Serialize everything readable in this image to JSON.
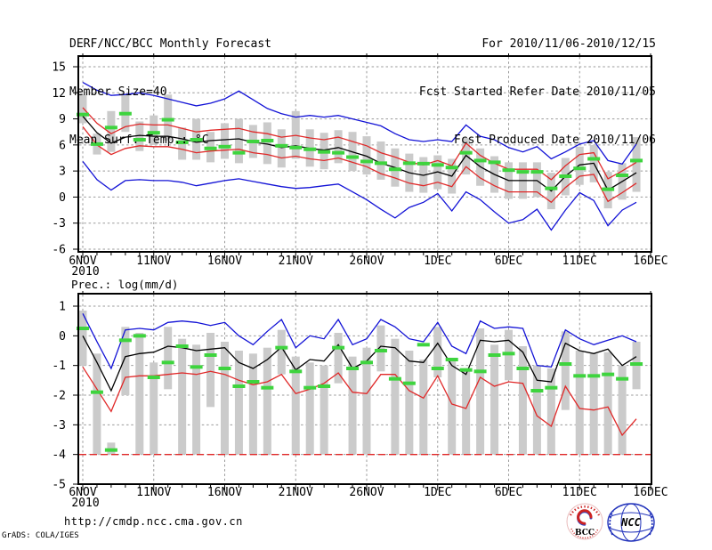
{
  "header": {
    "title": "DERF/NCC/BCC Monthly Forecast",
    "member_size": "Member Size=40",
    "chart1_label": "Mean Surf. Temp.: °C",
    "for_range": "For 2010/11/06-2010/12/15",
    "refer_date": "Fcst Started Refer Date 2010/11/05",
    "produced_date": "Fcst Produced Date 2010/11/06"
  },
  "footer": {
    "url": "http://cmdp.ncc.cma.gov.cn",
    "credit": "GrADS: COLA/IGES",
    "logos": [
      {
        "name": "bcc-logo",
        "caption": "BCC"
      },
      {
        "name": "ncc-logo",
        "caption": "NCC"
      }
    ]
  },
  "colors": {
    "blue": "#1212d6",
    "red": "#e02828",
    "black": "#000000",
    "green": "#3ed43e",
    "bar_gray": "#cbcbcb",
    "grid_gray": "#999999",
    "logo_blue": "#2233bb",
    "logo_red": "#cc2222",
    "logo_navy": "#1c2d80"
  },
  "chart_data": [
    {
      "type": "line",
      "name": "mean-surface-temperature-chart",
      "title": "Mean Surf. Temp.: °C",
      "x_tick_labels": [
        "6NOV",
        "11NOV",
        "16NOV",
        "21NOV",
        "26NOV",
        "1DEC",
        "6DEC",
        "11DEC",
        "16DEC"
      ],
      "x_year_label": "2010",
      "y_ticks": [
        15,
        12,
        9,
        6,
        3,
        0,
        -3,
        -6
      ],
      "ylim": [
        -6.3,
        16.2
      ],
      "n_days": 40,
      "grid": true,
      "series": [
        {
          "name": "ensemble-max",
          "color": "blue",
          "values": [
            13.2,
            12.3,
            11.7,
            11.8,
            12.0,
            11.7,
            11.3,
            10.9,
            10.5,
            10.8,
            11.3,
            12.2,
            11.2,
            10.2,
            9.6,
            9.2,
            9.4,
            9.2,
            9.4,
            9.0,
            8.6,
            8.2,
            7.3,
            6.6,
            6.4,
            6.6,
            6.4,
            8.3,
            7.0,
            6.6,
            5.7,
            5.2,
            5.8,
            4.4,
            5.2,
            6.1,
            6.5,
            4.2,
            3.8,
            6.1
          ]
        },
        {
          "name": "upper-spread",
          "color": "red",
          "values": [
            10.3,
            8.5,
            7.3,
            8.1,
            8.4,
            8.3,
            8.3,
            7.9,
            7.5,
            7.7,
            7.8,
            7.9,
            7.5,
            7.3,
            6.9,
            7.1,
            6.8,
            6.6,
            6.9,
            6.4,
            5.9,
            5.1,
            4.6,
            4.0,
            3.7,
            4.2,
            3.6,
            6.2,
            4.8,
            3.9,
            3.2,
            3.2,
            3.2,
            2.0,
            3.6,
            4.9,
            5.1,
            2.1,
            3.0,
            4.0
          ]
        },
        {
          "name": "ensemble-mean",
          "color": "black",
          "values": [
            9.3,
            7.4,
            6.2,
            6.9,
            7.1,
            7.0,
            7.0,
            6.7,
            6.3,
            6.5,
            6.6,
            6.7,
            6.3,
            6.1,
            5.7,
            5.9,
            5.6,
            5.4,
            5.7,
            5.2,
            4.7,
            3.9,
            3.4,
            2.8,
            2.5,
            2.9,
            2.4,
            4.8,
            3.5,
            2.6,
            1.9,
            1.9,
            1.9,
            0.7,
            2.4,
            3.7,
            3.9,
            0.8,
            1.8,
            2.8
          ]
        },
        {
          "name": "lower-spread",
          "color": "red",
          "values": [
            8.1,
            6.0,
            4.9,
            5.6,
            5.9,
            5.8,
            5.8,
            5.5,
            5.1,
            5.3,
            5.4,
            5.5,
            5.1,
            4.9,
            4.5,
            4.7,
            4.4,
            4.2,
            4.5,
            4.0,
            3.5,
            2.7,
            2.2,
            1.6,
            1.3,
            1.7,
            1.2,
            3.5,
            2.2,
            1.3,
            0.6,
            0.6,
            0.6,
            -0.6,
            1.1,
            2.4,
            2.6,
            -0.5,
            0.5,
            1.6
          ]
        },
        {
          "name": "ensemble-min",
          "color": "blue",
          "values": [
            4.1,
            2.0,
            0.8,
            1.9,
            2.0,
            1.9,
            1.9,
            1.7,
            1.3,
            1.6,
            1.9,
            2.1,
            1.8,
            1.5,
            1.2,
            1.0,
            1.1,
            1.3,
            1.5,
            0.6,
            -0.3,
            -1.4,
            -2.4,
            -1.2,
            -0.6,
            0.4,
            -1.6,
            0.6,
            -0.3,
            -1.7,
            -3.0,
            -2.6,
            -1.4,
            -3.8,
            -1.5,
            0.5,
            -0.4,
            -3.3,
            -1.5,
            -0.6
          ]
        }
      ],
      "obs_dashes": {
        "name": "observation-dashes",
        "color": "green",
        "values": [
          9.5,
          6.1,
          8.0,
          9.6,
          6.6,
          7.4,
          8.9,
          6.3,
          6.6,
          5.6,
          5.8,
          5.1,
          6.4,
          6.5,
          5.9,
          5.7,
          5.5,
          5.2,
          5.1,
          4.6,
          4.1,
          3.9,
          3.2,
          3.9,
          3.85,
          3.7,
          3.4,
          5.1,
          4.2,
          4.0,
          3.1,
          2.9,
          2.9,
          1.0,
          2.4,
          3.3,
          4.4,
          0.9,
          2.5,
          4.2
        ]
      },
      "spread_bars": {
        "name": "member-spread-bars",
        "color": "bar_gray",
        "ranges": [
          [
            8.5,
            11.8
          ],
          [
            4.9,
            7.3
          ],
          [
            5.2,
            9.9
          ],
          [
            7.5,
            11.9
          ],
          [
            5.3,
            8.7
          ],
          [
            6.0,
            9.4
          ],
          [
            6.5,
            11.8
          ],
          [
            4.3,
            8.0
          ],
          [
            4.3,
            9.0
          ],
          [
            4.0,
            7.5
          ],
          [
            4.4,
            8.5
          ],
          [
            3.9,
            9.0
          ],
          [
            4.5,
            8.3
          ],
          [
            3.8,
            8.6
          ],
          [
            3.4,
            7.8
          ],
          [
            4.4,
            9.9
          ],
          [
            3.5,
            7.8
          ],
          [
            3.2,
            7.4
          ],
          [
            3.9,
            7.7
          ],
          [
            3.0,
            7.5
          ],
          [
            2.6,
            7.0
          ],
          [
            2.0,
            6.4
          ],
          [
            1.2,
            5.6
          ],
          [
            0.6,
            5.0
          ],
          [
            0.5,
            4.6
          ],
          [
            0.9,
            4.8
          ],
          [
            0.4,
            4.4
          ],
          [
            2.6,
            6.8
          ],
          [
            1.3,
            5.6
          ],
          [
            0.5,
            4.7
          ],
          [
            -0.2,
            4.0
          ],
          [
            -0.2,
            4.0
          ],
          [
            0.0,
            4.0
          ],
          [
            -1.4,
            2.8
          ],
          [
            0.2,
            4.5
          ],
          [
            1.4,
            5.8
          ],
          [
            1.7,
            6.0
          ],
          [
            -1.3,
            2.9
          ],
          [
            -0.3,
            3.9
          ],
          [
            0.6,
            6.9
          ]
        ]
      }
    },
    {
      "type": "line",
      "name": "precipitation-chart",
      "title": "Prec.: log(mm/d)",
      "x_tick_labels": [
        "6NOV",
        "11NOV",
        "16NOV",
        "21NOV",
        "26NOV",
        "1DEC",
        "6DEC",
        "11DEC",
        "16DEC"
      ],
      "x_year_label": "2010",
      "y_ticks": [
        1,
        0,
        -1,
        -2,
        -3,
        -4,
        -5
      ],
      "ylim": [
        -5,
        1.42
      ],
      "n_days": 40,
      "grid": true,
      "baseline": {
        "name": "zero-precip-baseline",
        "value": -4,
        "color": "red",
        "style": "dashed"
      },
      "series": [
        {
          "name": "ensemble-max",
          "color": "blue",
          "values": [
            0.75,
            -0.2,
            -1.1,
            0.2,
            0.25,
            0.2,
            0.45,
            0.5,
            0.45,
            0.35,
            0.45,
            0.0,
            -0.3,
            0.15,
            0.55,
            -0.4,
            0.0,
            -0.1,
            0.55,
            -0.3,
            -0.1,
            0.55,
            0.3,
            -0.1,
            -0.2,
            0.45,
            -0.35,
            -0.6,
            0.5,
            0.25,
            0.3,
            0.25,
            -1.0,
            -1.05,
            0.2,
            -0.1,
            -0.3,
            -0.15,
            0.0,
            -0.2
          ]
        },
        {
          "name": "ensemble-mean",
          "color": "black",
          "values": [
            0.0,
            -0.9,
            -1.85,
            -0.7,
            -0.6,
            -0.55,
            -0.35,
            -0.4,
            -0.5,
            -0.45,
            -0.4,
            -0.9,
            -1.1,
            -0.8,
            -0.38,
            -1.15,
            -0.8,
            -0.85,
            -0.3,
            -1.1,
            -0.85,
            -0.35,
            -0.4,
            -0.85,
            -0.9,
            -0.25,
            -1.0,
            -1.3,
            -0.15,
            -0.2,
            -0.15,
            -0.55,
            -1.5,
            -1.55,
            -0.25,
            -0.5,
            -0.6,
            -0.45,
            -1.0,
            -0.7
          ]
        },
        {
          "name": "lower-spread",
          "color": "red",
          "values": [
            -1.05,
            -1.8,
            -2.55,
            -1.4,
            -1.35,
            -1.35,
            -1.3,
            -1.25,
            -1.3,
            -1.2,
            -1.3,
            -1.5,
            -1.65,
            -1.55,
            -1.3,
            -1.95,
            -1.8,
            -1.6,
            -1.25,
            -1.9,
            -1.95,
            -1.3,
            -1.3,
            -1.85,
            -2.1,
            -1.35,
            -2.3,
            -2.45,
            -1.4,
            -1.7,
            -1.55,
            -1.6,
            -2.7,
            -3.05,
            -1.7,
            -2.45,
            -2.5,
            -2.4,
            -3.35,
            -2.8
          ]
        }
      ],
      "obs_dashes": {
        "name": "observation-dashes",
        "color": "green",
        "values": [
          0.25,
          -1.9,
          -3.85,
          -0.15,
          0.0,
          -1.4,
          -0.9,
          -0.35,
          -1.05,
          -0.65,
          -1.1,
          -1.7,
          -1.55,
          -1.75,
          -0.4,
          -1.2,
          -1.75,
          -1.7,
          -0.4,
          -1.1,
          -0.9,
          -0.5,
          -1.45,
          -1.6,
          -0.3,
          -1.1,
          -0.8,
          -1.15,
          -1.2,
          -0.65,
          -0.6,
          -1.1,
          -1.85,
          -1.75,
          -0.95,
          -1.35,
          -1.35,
          -1.3,
          -1.45,
          -0.95
        ]
      },
      "spread_bars": {
        "name": "member-spread-bars",
        "color": "bar_gray",
        "ranges": [
          [
            -1.0,
            0.85
          ],
          [
            -4,
            -0.6
          ],
          [
            -4,
            -3.6
          ],
          [
            -2.0,
            0.3
          ],
          [
            -4,
            0.1
          ],
          [
            -4,
            -0.9
          ],
          [
            -1.8,
            0.3
          ],
          [
            -4,
            -0.1
          ],
          [
            -4,
            -0.3
          ],
          [
            -2.4,
            0.1
          ],
          [
            -4,
            -0.2
          ],
          [
            -4,
            -0.5
          ],
          [
            -4,
            -0.6
          ],
          [
            -4,
            -0.4
          ],
          [
            -1.3,
            0.2
          ],
          [
            -4,
            -0.7
          ],
          [
            -4,
            -0.9
          ],
          [
            -4,
            -1.0
          ],
          [
            -1.6,
            0.1
          ],
          [
            -4,
            -0.7
          ],
          [
            -4,
            -0.4
          ],
          [
            -1.2,
            0.35
          ],
          [
            -4,
            -0.1
          ],
          [
            -4,
            -0.5
          ],
          [
            -4,
            -0.8
          ],
          [
            -1.4,
            0.3
          ],
          [
            -4,
            -0.8
          ],
          [
            -4,
            -1.1
          ],
          [
            -4,
            0.25
          ],
          [
            -4,
            -0.3
          ],
          [
            -1.5,
            0.2
          ],
          [
            -4,
            -0.35
          ],
          [
            -4,
            -1.0
          ],
          [
            -4,
            -1.1
          ],
          [
            -2.5,
            0.15
          ],
          [
            -4,
            -0.5
          ],
          [
            -4,
            -0.6
          ],
          [
            -4,
            -0.55
          ],
          [
            -4,
            -1.0
          ],
          [
            -1.8,
            -0.2
          ]
        ]
      }
    }
  ]
}
